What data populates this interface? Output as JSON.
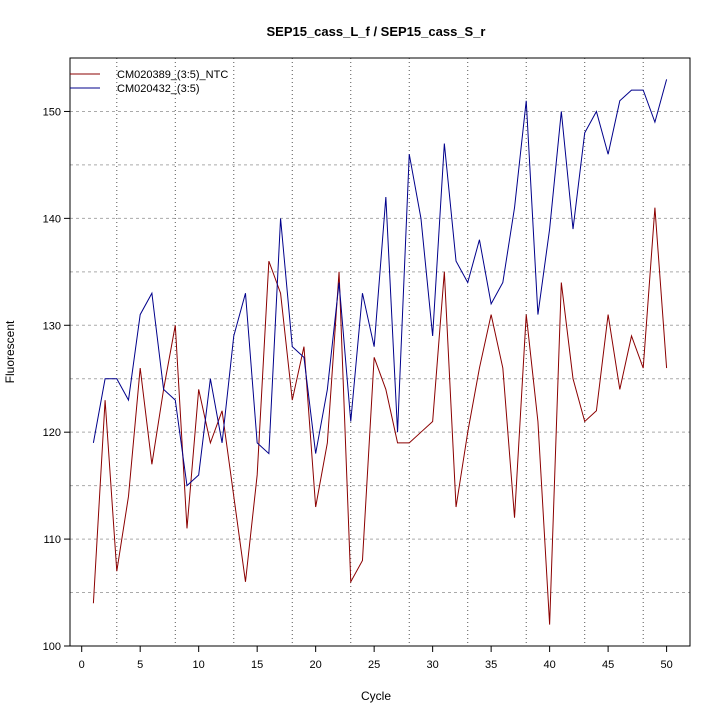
{
  "chart_data": {
    "type": "line",
    "title": "SEP15_cass_L_f / SEP15_cass_S_r",
    "xlabel": "Cycle",
    "ylabel": "Fluorescent",
    "xlim": [
      -1,
      52
    ],
    "ylim": [
      100,
      155
    ],
    "x_ticks": [
      0,
      5,
      10,
      15,
      20,
      25,
      30,
      35,
      40,
      45,
      50
    ],
    "y_ticks": [
      100,
      110,
      120,
      130,
      140,
      150
    ],
    "grid": true,
    "grid_x_lines": [
      3,
      8,
      13,
      18,
      23,
      28,
      33,
      38,
      43,
      48
    ],
    "grid_y_lines": [
      105,
      110,
      115,
      120,
      125,
      130,
      135,
      140,
      145,
      150
    ],
    "legend_position": "top-left",
    "x": [
      1,
      2,
      3,
      4,
      5,
      6,
      7,
      8,
      9,
      10,
      11,
      12,
      13,
      14,
      15,
      16,
      17,
      18,
      19,
      20,
      21,
      22,
      23,
      24,
      25,
      26,
      27,
      28,
      29,
      30,
      31,
      32,
      33,
      34,
      35,
      36,
      37,
      38,
      39,
      40,
      41,
      42,
      43,
      44,
      45,
      46,
      47,
      48,
      49,
      50
    ],
    "series": [
      {
        "name": "CM020389_(3:5)_NTC",
        "color": "#8b0000",
        "values": [
          104,
          123,
          107,
          114,
          126,
          117,
          124,
          130,
          111,
          124,
          119,
          122,
          114,
          106,
          116,
          136,
          133,
          123,
          128,
          113,
          119,
          135,
          106,
          108,
          127,
          124,
          119,
          119,
          120,
          121,
          135,
          113,
          120,
          126,
          131,
          126,
          112,
          131,
          121,
          102,
          134,
          125,
          121,
          122,
          131,
          124,
          129,
          126,
          141,
          126
        ]
      },
      {
        "name": "CM020432_(3:5)",
        "color": "#00008b",
        "values": [
          119,
          125,
          125,
          123,
          131,
          133,
          124,
          123,
          115,
          116,
          125,
          119,
          129,
          133,
          119,
          118,
          140,
          128,
          127,
          118,
          124,
          134,
          121,
          133,
          128,
          142,
          120,
          146,
          140,
          129,
          147,
          136,
          134,
          138,
          132,
          134,
          141,
          151,
          131,
          139,
          150,
          139,
          148,
          150,
          146,
          151,
          152,
          152,
          149,
          153
        ]
      }
    ]
  }
}
